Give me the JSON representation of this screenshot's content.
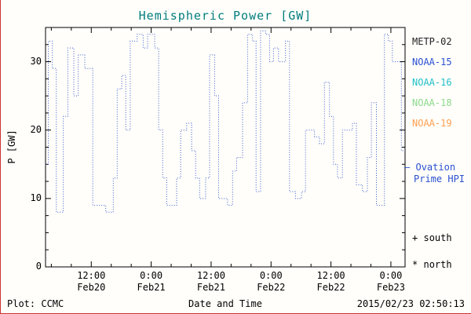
{
  "title": "Hemispheric Power [GW]",
  "y_axis_label": "P [GW]",
  "x_axis_label": "Date and Time",
  "footer": {
    "plot_credit": "Plot: CCMC",
    "timestamp": "2015/02/23 02:50:13"
  },
  "colors": {
    "title": "#007d7d",
    "axis": "#000000",
    "frame_border": "#cc3333",
    "line": "#3b5bd0"
  },
  "legend": {
    "satellites": [
      {
        "label": "METP-02",
        "color": "#222222"
      },
      {
        "label": "NOAA-15",
        "color": "#2b50d0"
      },
      {
        "label": "NOAA-16",
        "color": "#20c0c8"
      },
      {
        "label": "NOAA-18",
        "color": "#8cd98c"
      },
      {
        "label": "NOAA-19",
        "color": "#ff9f50"
      }
    ],
    "ovation": {
      "marker": "—",
      "label_line1": "Ovation",
      "label_line2": "Prime HPI",
      "color": "#2b50d0"
    },
    "south": {
      "symbol": "+",
      "label": "south"
    },
    "north": {
      "symbol": "*",
      "label": "north"
    }
  },
  "chart_data": {
    "type": "line",
    "step": true,
    "line_style": "dotted",
    "title": "Hemispheric Power [GW]",
    "xlabel": "Date and Time",
    "ylabel": "P [GW]",
    "x_unit": "hours since 2015-02-20 00:00 UT",
    "xlim": [
      2.84,
      74.84
    ],
    "ylim": [
      0,
      35
    ],
    "grid": false,
    "legend_position": "right",
    "y_ticks": [
      0,
      10,
      20,
      30
    ],
    "x_ticks": [
      {
        "hour": 12,
        "time": "12:00",
        "date": "Feb20"
      },
      {
        "hour": 24,
        "time": "0:00",
        "date": "Feb21"
      },
      {
        "hour": 36,
        "time": "12:00",
        "date": "Feb21"
      },
      {
        "hour": 48,
        "time": "0:00",
        "date": "Feb22"
      },
      {
        "hour": 60,
        "time": "12:00",
        "date": "Feb22"
      },
      {
        "hour": 72,
        "time": "0:00",
        "date": "Feb23"
      }
    ],
    "series": [
      {
        "name": "Ovation Prime HPI",
        "color": "#3b5bd0",
        "points": [
          [
            2.84,
            15
          ],
          [
            3.4,
            33
          ],
          [
            4.2,
            29
          ],
          [
            5,
            8
          ],
          [
            6.4,
            22
          ],
          [
            7.3,
            32
          ],
          [
            8.5,
            25
          ],
          [
            9.4,
            31
          ],
          [
            10.7,
            29
          ],
          [
            12.3,
            9
          ],
          [
            14.9,
            8
          ],
          [
            16.4,
            13
          ],
          [
            17.2,
            26
          ],
          [
            18.1,
            28
          ],
          [
            18.9,
            20
          ],
          [
            19.8,
            33
          ],
          [
            21.2,
            34
          ],
          [
            22.4,
            32
          ],
          [
            23.3,
            34
          ],
          [
            24.7,
            32
          ],
          [
            25.5,
            20
          ],
          [
            26.3,
            13
          ],
          [
            27.1,
            9
          ],
          [
            29.1,
            13
          ],
          [
            29.9,
            20
          ],
          [
            31.1,
            21
          ],
          [
            32.1,
            17
          ],
          [
            32.9,
            13
          ],
          [
            33.7,
            10
          ],
          [
            34.9,
            13
          ],
          [
            35.7,
            31
          ],
          [
            36.7,
            25
          ],
          [
            37.5,
            10
          ],
          [
            39.3,
            9
          ],
          [
            40.3,
            14
          ],
          [
            41.1,
            16
          ],
          [
            42.3,
            24
          ],
          [
            43.3,
            34
          ],
          [
            44.3,
            33
          ],
          [
            45,
            11
          ],
          [
            45.9,
            34.5
          ],
          [
            46.9,
            34
          ],
          [
            47.7,
            30
          ],
          [
            48.5,
            32
          ],
          [
            49.5,
            30
          ],
          [
            50.9,
            33
          ],
          [
            51.7,
            11
          ],
          [
            52.9,
            10
          ],
          [
            54.1,
            11
          ],
          [
            54.9,
            20
          ],
          [
            56.7,
            19
          ],
          [
            57.7,
            18
          ],
          [
            58.7,
            27
          ],
          [
            59.7,
            22
          ],
          [
            60.5,
            15
          ],
          [
            61.3,
            13
          ],
          [
            62.3,
            20
          ],
          [
            64.3,
            21
          ],
          [
            65.1,
            12
          ],
          [
            66.3,
            11
          ],
          [
            67.3,
            16
          ],
          [
            68.1,
            24
          ],
          [
            69.1,
            9
          ],
          [
            70.7,
            34
          ],
          [
            71.5,
            33
          ],
          [
            72.3,
            30
          ],
          [
            74.1,
            17
          ]
        ]
      }
    ]
  }
}
